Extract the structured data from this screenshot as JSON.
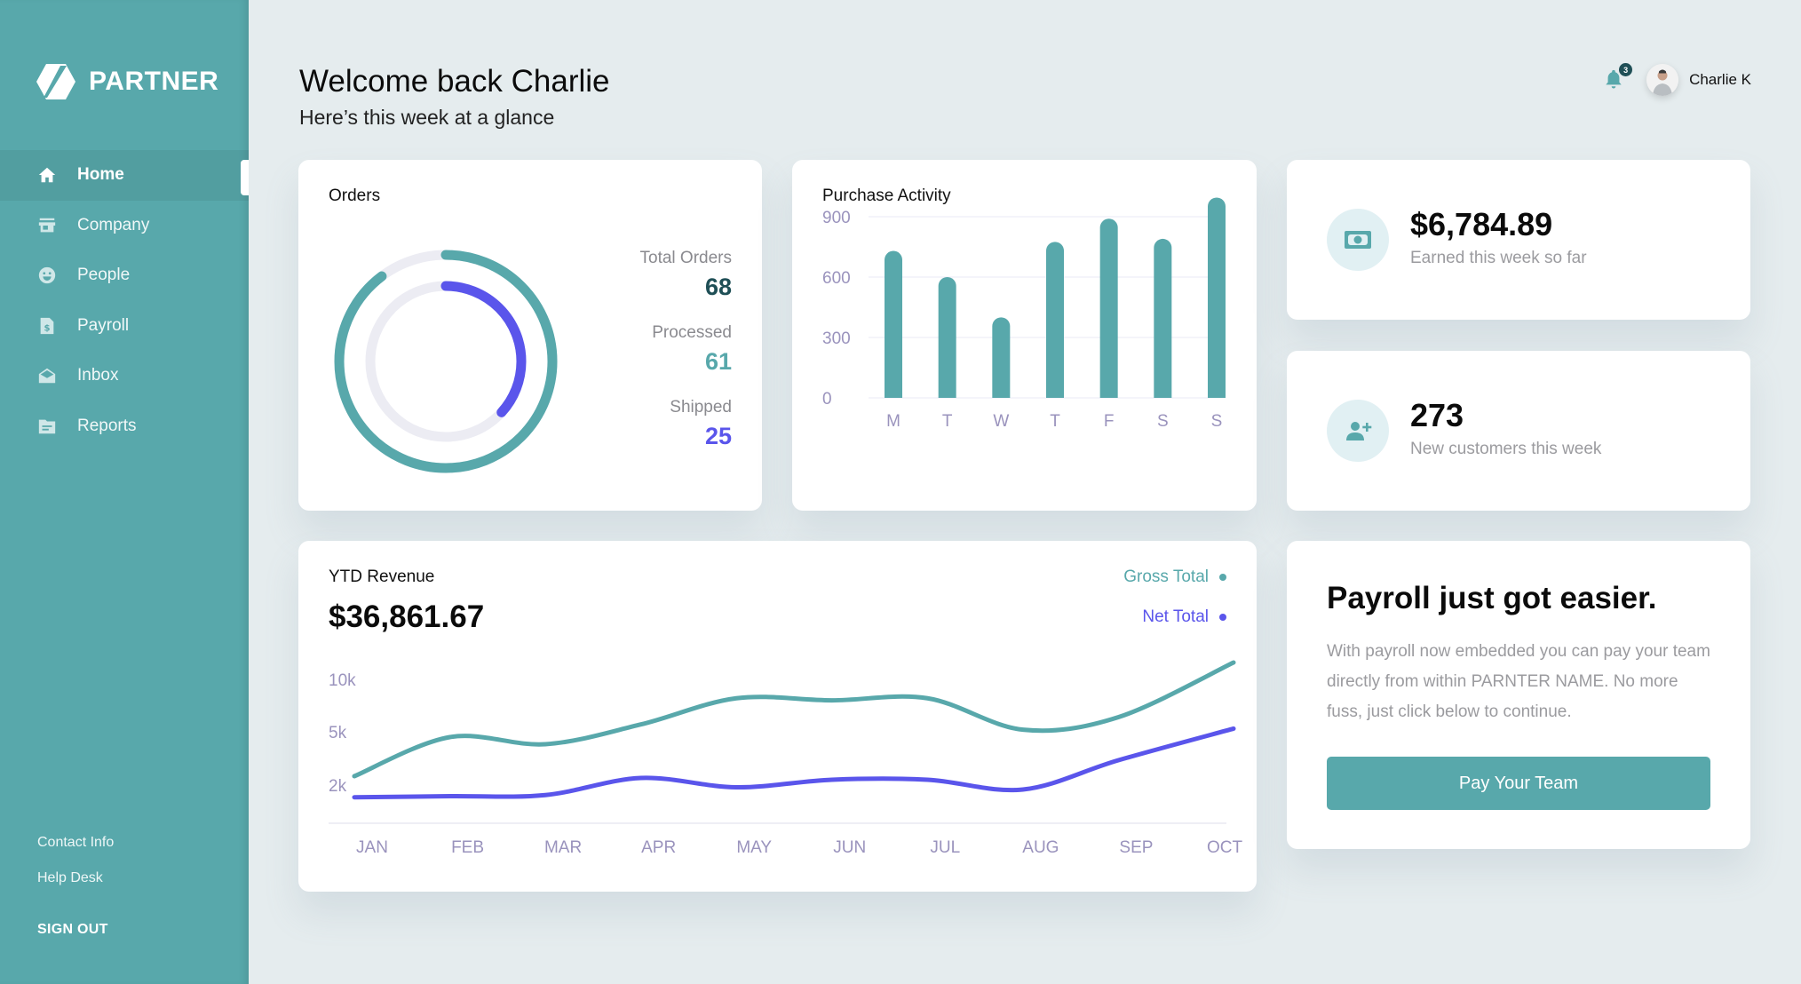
{
  "brand": {
    "name": "PARTNER",
    "logo_icon": "hexagon-logo-icon"
  },
  "sidebar": {
    "items": [
      {
        "label": "Home",
        "icon": "home-icon",
        "active": true
      },
      {
        "label": "Company",
        "icon": "storefront-icon",
        "active": false
      },
      {
        "label": "People",
        "icon": "smiley-face-icon",
        "active": false
      },
      {
        "label": "Payroll",
        "icon": "dollar-document-icon",
        "active": false
      },
      {
        "label": "Inbox",
        "icon": "open-envelope-icon",
        "active": false
      },
      {
        "label": "Reports",
        "icon": "folder-icon",
        "active": false
      }
    ],
    "footer_links": [
      {
        "label": "Contact Info"
      },
      {
        "label": "Help Desk"
      }
    ],
    "sign_out_label": "SIGN OUT"
  },
  "header": {
    "title": "Welcome back Charlie",
    "subtitle": "Here’s this week at a glance",
    "notifications_count": "3",
    "user_name": "Charlie K"
  },
  "colors": {
    "brand": "#58a8ab",
    "accent_purple": "#5a55eb",
    "dark_teal": "#1f4f56",
    "track": "#ececf3"
  },
  "orders": {
    "title": "Orders",
    "stats": [
      {
        "label": "Total Orders",
        "value": "68",
        "color": "#1f4f56"
      },
      {
        "label": "Processed",
        "value": "61",
        "color": "#58a8ab"
      },
      {
        "label": "Shipped",
        "value": "25",
        "color": "#5a55eb"
      }
    ]
  },
  "stats": {
    "earned": {
      "value": "$6,784.89",
      "caption": "Earned this week so far",
      "icon": "cash-icon"
    },
    "customers": {
      "value": "273",
      "caption": "New customers this week",
      "icon": "add-user-icon"
    }
  },
  "revenue": {
    "title": "YTD Revenue",
    "amount": "$36,861.67"
  },
  "promo": {
    "title": "Payroll just got easier.",
    "body": "With payroll now embedded you can pay your team directly from within PARNTER NAME. No more fuss, just click below to continue.",
    "button_label": "Pay Your Team"
  },
  "chart_data": [
    {
      "type": "pie",
      "title": "Orders",
      "subtype": "concentric-progress-rings",
      "total": 68,
      "series": [
        {
          "name": "Processed",
          "value": 61,
          "color": "#58a8ab"
        },
        {
          "name": "Shipped",
          "value": 25,
          "color": "#5a55eb"
        }
      ]
    },
    {
      "type": "bar",
      "title": "Purchase Activity",
      "categories": [
        "M",
        "T",
        "W",
        "T",
        "F",
        "S",
        "S"
      ],
      "values": [
        730,
        600,
        400,
        775,
        890,
        790,
        995
      ],
      "yticks": [
        0,
        300,
        600,
        900
      ],
      "ylim": [
        0,
        900
      ],
      "xlabel": "",
      "ylabel": "",
      "grid": true,
      "color": "#58a8ab"
    },
    {
      "type": "line",
      "title": "YTD Revenue",
      "categories": [
        "JAN",
        "FEB",
        "MAR",
        "APR",
        "MAY",
        "JUN",
        "JUL",
        "AUG",
        "SEP",
        "OCT"
      ],
      "yticks": [
        {
          "label": "10k",
          "value": 10000
        },
        {
          "label": "5k",
          "value": 5000
        },
        {
          "label": "2k",
          "value": 2000
        }
      ],
      "ylim": [
        0,
        13000
      ],
      "legend": "top-right",
      "series": [
        {
          "name": "Gross Total",
          "color": "#58a8ab",
          "values": [
            2500,
            4700,
            4300,
            5700,
            8200,
            8000,
            8200,
            5200,
            6400,
            11500
          ]
        },
        {
          "name": "Net Total",
          "color": "#5a55eb",
          "values": [
            900,
            1000,
            1100,
            2400,
            1800,
            2300,
            2300,
            1600,
            3400,
            5300
          ]
        }
      ]
    }
  ]
}
